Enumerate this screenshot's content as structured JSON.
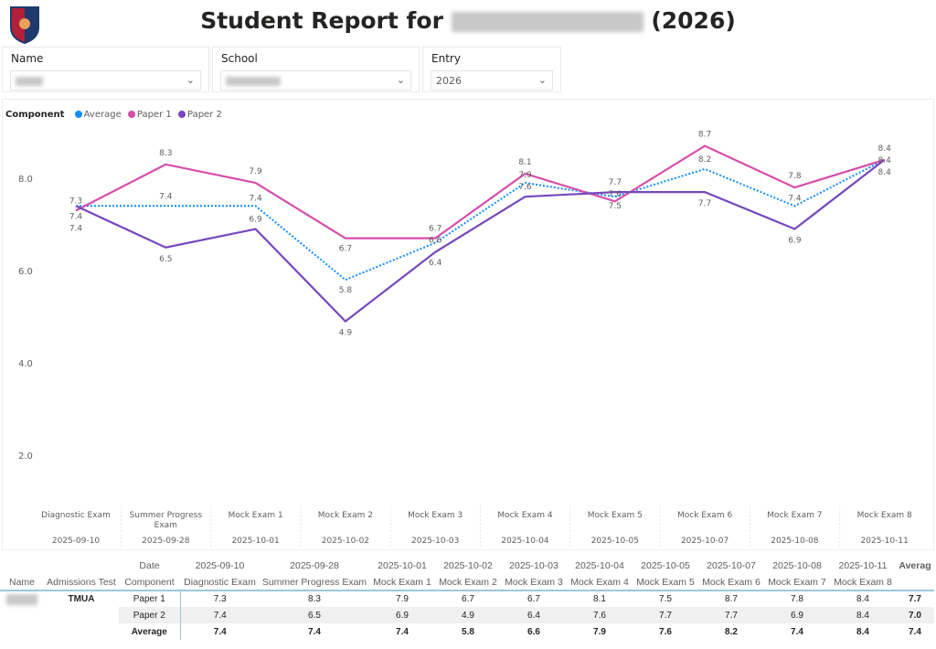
{
  "header": {
    "title_prefix": "Student Report for",
    "title_suffix": "(2026)"
  },
  "filters": [
    {
      "label": "Name"
    },
    {
      "label": "School"
    },
    {
      "label": "Entry",
      "value": "2026"
    }
  ],
  "colors": {
    "average": "#118dff",
    "paper1": "#d64eaa",
    "paper2": "#7747bd"
  },
  "chart_data": {
    "type": "line",
    "legend_title": "Component",
    "legend_placement": "top-left",
    "categories": [
      "Diagnostic Exam",
      "Summer Progress Exam",
      "Mock Exam 1",
      "Mock Exam 2",
      "Mock Exam 3",
      "Mock Exam 4",
      "Mock Exam 5",
      "Mock Exam 6",
      "Mock Exam 7",
      "Mock Exam 8"
    ],
    "dates": [
      "2025-09-10",
      "2025-09-28",
      "2025-10-01",
      "2025-10-02",
      "2025-10-03",
      "2025-10-04",
      "2025-10-05",
      "2025-10-07",
      "2025-10-08",
      "2025-10-11"
    ],
    "y_ticks": [
      "2.0",
      "4.0",
      "6.0",
      "8.0"
    ],
    "series": [
      {
        "name": "Average",
        "style": "dotted",
        "values": [
          7.4,
          7.4,
          7.4,
          5.8,
          6.6,
          7.9,
          7.6,
          8.2,
          7.4,
          8.4
        ]
      },
      {
        "name": "Paper 1",
        "style": "solid",
        "values": [
          7.3,
          8.3,
          7.9,
          6.7,
          6.7,
          8.1,
          7.5,
          8.7,
          7.8,
          8.4
        ]
      },
      {
        "name": "Paper 2",
        "style": "solid",
        "values": [
          7.4,
          6.5,
          6.9,
          4.9,
          6.4,
          7.6,
          7.7,
          7.7,
          6.9,
          8.4
        ]
      }
    ]
  },
  "table": {
    "headers": {
      "date": "Date",
      "component": "Component",
      "name": "Name",
      "test": "Admissions Test",
      "average": "Averag"
    },
    "test": "TMUA",
    "rows": [
      {
        "component": "Paper 1",
        "values": [
          "7.3",
          "8.3",
          "7.9",
          "6.7",
          "6.7",
          "8.1",
          "7.5",
          "8.7",
          "7.8",
          "8.4"
        ],
        "avg": "7.7"
      },
      {
        "component": "Paper 2",
        "values": [
          "7.4",
          "6.5",
          "6.9",
          "4.9",
          "6.4",
          "7.6",
          "7.7",
          "7.7",
          "6.9",
          "8.4"
        ],
        "avg": "7.0"
      },
      {
        "component": "Average",
        "values": [
          "7.4",
          "7.4",
          "7.4",
          "5.8",
          "6.6",
          "7.9",
          "7.6",
          "8.2",
          "7.4",
          "8.4"
        ],
        "avg": "7.4"
      }
    ]
  }
}
